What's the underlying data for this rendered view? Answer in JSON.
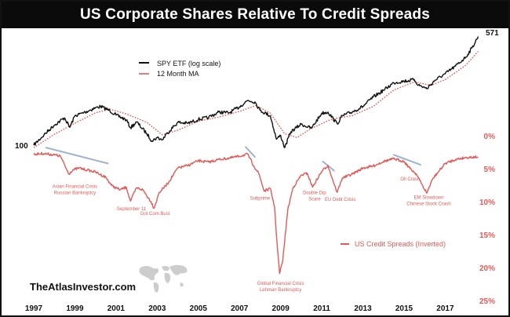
{
  "title": "US Corporate Shares Relative To Credit Spreads",
  "brand": "TheAtlasInvestor.com",
  "colors": {
    "spy": "#111111",
    "ma": "#d9534f",
    "credit": "#e15a57",
    "trend": "#9db3cf",
    "axis_right": "#e15a57",
    "title_bg": "#0b0b0b"
  },
  "icons": [
    "world-map-icon"
  ],
  "chart_data": {
    "type": "line",
    "x_ticks": [
      "1997",
      "1999",
      "2001",
      "2003",
      "2005",
      "2007",
      "2009",
      "2011",
      "2013",
      "2015",
      "2017"
    ],
    "xlim": [
      1997,
      2018.7
    ],
    "left_axis": {
      "scale": "log",
      "ylim": [
        100,
        620
      ],
      "start_label": "100",
      "end_label": "571"
    },
    "right_axis": {
      "inverted": true,
      "ylim": [
        0,
        25
      ],
      "ticks": [
        "0%",
        "5%",
        "10%",
        "15%",
        "20%",
        "25%"
      ],
      "tick_values": [
        0,
        5,
        10,
        15,
        20,
        25
      ]
    },
    "grid": false,
    "legend_placement": "top-left",
    "legend": [
      {
        "label": "SPY ETF (log scale)",
        "series": "spy"
      },
      {
        "label": "12 Month MA",
        "series": "ma"
      }
    ],
    "legend2": {
      "label": "US Credit Spreads (Inverted)",
      "series": "credit",
      "placement": "bottom-right"
    },
    "series": [
      {
        "id": "spy",
        "name": "SPY ETF (log scale)",
        "x": [
          1997.0,
          1997.5,
          1998.0,
          1998.5,
          1998.75,
          1999.0,
          1999.5,
          2000.0,
          2000.25,
          2000.7,
          2001.0,
          2001.5,
          2001.7,
          2002.0,
          2002.5,
          2002.75,
          2003.0,
          2003.25,
          2003.5,
          2004.0,
          2004.5,
          2005.0,
          2005.5,
          2006.0,
          2006.5,
          2007.0,
          2007.4,
          2007.75,
          2008.0,
          2008.5,
          2008.8,
          2009.0,
          2009.2,
          2009.5,
          2010.0,
          2010.5,
          2011.0,
          2011.3,
          2011.75,
          2012.0,
          2012.5,
          2013.0,
          2013.5,
          2014.0,
          2014.5,
          2015.0,
          2015.5,
          2015.7,
          2016.0,
          2016.1,
          2016.5,
          2017.0,
          2017.5,
          2018.0,
          2018.3,
          2018.6
        ],
        "values": [
          100,
          118,
          138,
          155,
          133,
          160,
          170,
          182,
          186,
          174,
          162,
          150,
          132,
          145,
          120,
          107,
          113,
          109,
          122,
          144,
          142,
          151,
          156,
          170,
          168,
          185,
          205,
          200,
          175,
          160,
          110,
          117,
          96,
          124,
          140,
          131,
          167,
          170,
          141,
          160,
          171,
          186,
          216,
          241,
          272,
          279,
          286,
          262,
          252,
          247,
          283,
          314,
          355,
          410,
          475,
          571
        ]
      },
      {
        "id": "ma",
        "name": "12 Month MA",
        "x": [
          1997.0,
          1998.0,
          1999.0,
          2000.0,
          2000.7,
          2001.5,
          2002.5,
          2003.25,
          2004.0,
          2005.0,
          2006.0,
          2007.0,
          2007.8,
          2008.5,
          2009.2,
          2009.8,
          2010.5,
          2011.5,
          2012.5,
          2013.5,
          2014.5,
          2015.5,
          2016.3,
          2017.0,
          2018.0,
          2018.6
        ],
        "values": [
          96,
          119,
          142,
          168,
          178,
          165,
          144,
          118,
          127,
          147,
          157,
          172,
          189,
          167,
          120,
          113,
          131,
          152,
          161,
          186,
          242,
          276,
          261,
          286,
          360,
          450
        ]
      },
      {
        "id": "credit",
        "name": "US Credit Spreads (Inverted)",
        "x": [
          1997.0,
          1997.5,
          1998.0,
          1998.3,
          1998.7,
          1998.9,
          1999.2,
          1999.6,
          2000.0,
          2000.5,
          2000.8,
          2001.2,
          2001.5,
          2001.7,
          2002.0,
          2002.3,
          2002.7,
          2002.85,
          2003.1,
          2003.5,
          2004.0,
          2004.5,
          2005.0,
          2005.5,
          2006.0,
          2006.5,
          2007.0,
          2007.4,
          2007.7,
          2007.95,
          2008.2,
          2008.5,
          2008.7,
          2008.85,
          2008.95,
          2009.1,
          2009.35,
          2009.6,
          2010.0,
          2010.3,
          2010.55,
          2011.0,
          2011.3,
          2011.6,
          2011.75,
          2012.0,
          2012.5,
          2013.0,
          2013.5,
          2014.0,
          2014.5,
          2015.0,
          2015.3,
          2015.6,
          2015.85,
          2016.1,
          2016.4,
          2017.0,
          2017.5,
          2018.0,
          2018.6
        ],
        "values": [
          2.8,
          2.7,
          2.9,
          3.1,
          5.8,
          5.2,
          4.9,
          5.2,
          5.5,
          6.3,
          7.6,
          8.2,
          7.8,
          9.9,
          7.9,
          8.2,
          10.0,
          11.0,
          8.6,
          7.3,
          4.9,
          4.5,
          3.8,
          4.0,
          3.6,
          3.4,
          3.1,
          2.8,
          4.6,
          5.8,
          8.4,
          8.0,
          10.7,
          17.2,
          20.9,
          19.0,
          11.2,
          7.9,
          6.0,
          5.7,
          7.8,
          5.4,
          4.5,
          7.3,
          8.6,
          6.4,
          5.8,
          4.9,
          4.6,
          3.9,
          3.5,
          3.9,
          5.0,
          5.8,
          7.3,
          8.7,
          6.5,
          4.2,
          3.6,
          3.3,
          3.2
        ]
      }
    ],
    "trend_lines": [
      {
        "x": [
          1997.6,
          2000.6
        ],
        "values": [
          1.8,
          4.2
        ]
      },
      {
        "x": [
          2007.3,
          2007.75
        ],
        "values": [
          1.7,
          3.2
        ]
      },
      {
        "x": [
          2011.05,
          2011.6
        ],
        "values": [
          3.9,
          5.3
        ]
      },
      {
        "x": [
          2014.5,
          2015.8
        ],
        "values": [
          2.9,
          4.4
        ]
      }
    ],
    "annotations": [
      {
        "lines": [
          "Asian Financial Crisis",
          "Russian Bankruptcy"
        ],
        "x": 1999.0,
        "value": 7.3
      },
      {
        "lines": [
          "September 11"
        ],
        "x": 2001.75,
        "value": 10.7
      },
      {
        "lines": [
          "Dot Com Bust"
        ],
        "x": 2002.9,
        "value": 11.4
      },
      {
        "lines": [
          "Subprime"
        ],
        "x": 2008.0,
        "value": 9.1
      },
      {
        "lines": [
          "Double Dip",
          "Scare"
        ],
        "x": 2010.65,
        "value": 8.3
      },
      {
        "lines": [
          "EU Debt Crisis"
        ],
        "x": 2011.9,
        "value": 9.3
      },
      {
        "lines": [
          "Oil Crash"
        ],
        "x": 2015.3,
        "value": 6.2
      },
      {
        "lines": [
          "EM Slowdown",
          "Chinese Stock Crash"
        ],
        "x": 2016.2,
        "value": 9.0
      },
      {
        "lines": [
          "Global Financial Crisis",
          "Lehman Bankruptcy"
        ],
        "x": 2009.0,
        "value": 22.0
      }
    ]
  }
}
